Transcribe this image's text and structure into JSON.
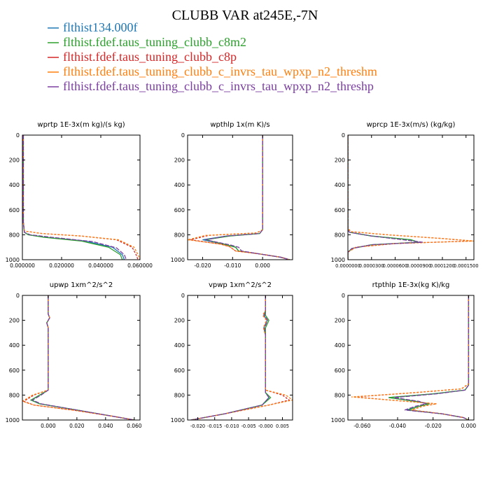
{
  "title": "CLUBB VAR at245E,-7N",
  "legend": [
    {
      "label": "flthist134.000f",
      "color": "#1f77b4"
    },
    {
      "label": "flthist.fdef.taus_tuning_clubb_c8m2",
      "color": "#2ca02c"
    },
    {
      "label": "flthist.fdef.taus_tuning_clubb_c8p",
      "color": "#d62728"
    },
    {
      "label": "flthist.fdef.taus_tuning_clubb_c_invrs_tau_wpxp_n2_threshm",
      "color": "#ff7f0e"
    },
    {
      "label": "flthist.fdef.taus_tuning_clubb_c_invrs_tau_wpxp_n2_threshp",
      "color": "#7b3fa0"
    }
  ],
  "chart_data": [
    {
      "type": "line",
      "title": "wprtp  1E-3x(m kg)/(s kg)",
      "xlim": [
        0.0,
        0.06
      ],
      "ylim": [
        1000,
        0
      ],
      "xticks": [
        0.0,
        0.02,
        0.04,
        0.06
      ],
      "xticklabels": [
        "0.000000",
        "0.020000",
        "0.040000",
        "0.060000"
      ],
      "yticks": [
        0,
        200,
        400,
        600,
        800,
        1000
      ],
      "yticklabels": [
        "0",
        "200",
        "400",
        "600",
        "800",
        "1000"
      ],
      "series": [
        {
          "color": "#1f77b4",
          "x": [
            0.0005,
            0.0005,
            0.001,
            0.003,
            0.012,
            0.032,
            0.046,
            0.051,
            0.052
          ],
          "y": [
            0,
            700,
            780,
            800,
            820,
            850,
            900,
            960,
            1000
          ]
        },
        {
          "color": "#2ca02c",
          "x": [
            0.0005,
            0.0005,
            0.001,
            0.003,
            0.011,
            0.03,
            0.044,
            0.05,
            0.051
          ],
          "y": [
            0,
            700,
            780,
            800,
            820,
            850,
            900,
            960,
            1000
          ]
        },
        {
          "color": "#d62728",
          "x": [
            0.0005,
            0.0005,
            0.001,
            0.01,
            0.03,
            0.048,
            0.056,
            0.058,
            0.059
          ],
          "y": [
            0,
            700,
            770,
            790,
            810,
            840,
            900,
            960,
            1000
          ]
        },
        {
          "color": "#ff7f0e",
          "x": [
            0.0005,
            0.0005,
            0.001,
            0.01,
            0.03,
            0.049,
            0.057,
            0.059,
            0.06
          ],
          "y": [
            0,
            700,
            770,
            790,
            810,
            840,
            900,
            960,
            1000
          ]
        },
        {
          "color": "#7b3fa0",
          "x": [
            0.0005,
            0.0005,
            0.001,
            0.004,
            0.015,
            0.036,
            0.048,
            0.052,
            0.053
          ],
          "y": [
            0,
            700,
            780,
            800,
            820,
            855,
            905,
            960,
            1000
          ]
        }
      ]
    },
    {
      "type": "line",
      "title": "wpthlp  1x(m K)/s",
      "xlim": [
        -0.025,
        0.01
      ],
      "ylim": [
        1000,
        0
      ],
      "xticks": [
        -0.02,
        -0.01,
        0.0
      ],
      "xticklabels": [
        "-0.020",
        "-0.010",
        "0.000"
      ],
      "yticks": [
        0,
        200,
        400,
        600,
        800,
        1000
      ],
      "yticklabels": [
        "0",
        "200",
        "400",
        "600",
        "800",
        "1000"
      ],
      "series": [
        {
          "color": "#1f77b4",
          "x": [
            0.0,
            0.0,
            -0.001,
            -0.012,
            -0.02,
            -0.012,
            -0.009,
            -0.008,
            -0.002,
            0.006,
            0.009
          ],
          "y": [
            0,
            760,
            790,
            810,
            840,
            880,
            900,
            930,
            950,
            980,
            1000
          ]
        },
        {
          "color": "#2ca02c",
          "x": [
            0.0,
            0.0,
            -0.001,
            -0.011,
            -0.019,
            -0.012,
            -0.009,
            -0.008,
            -0.002,
            0.006,
            0.009
          ],
          "y": [
            0,
            760,
            790,
            810,
            840,
            880,
            900,
            930,
            950,
            980,
            1000
          ]
        },
        {
          "color": "#d62728",
          "x": [
            0.0,
            0.0,
            -0.002,
            -0.018,
            -0.024,
            -0.014,
            -0.011,
            -0.009,
            -0.002,
            0.006,
            0.009
          ],
          "y": [
            0,
            760,
            785,
            805,
            840,
            875,
            895,
            930,
            950,
            980,
            1000
          ]
        },
        {
          "color": "#ff7f0e",
          "x": [
            0.0,
            0.0,
            -0.002,
            -0.019,
            -0.025,
            -0.014,
            -0.011,
            -0.009,
            -0.002,
            0.006,
            0.009
          ],
          "y": [
            0,
            760,
            785,
            805,
            840,
            875,
            895,
            930,
            950,
            980,
            1000
          ]
        },
        {
          "color": "#7b3fa0",
          "x": [
            0.0,
            0.0,
            -0.001,
            -0.012,
            -0.019,
            -0.011,
            -0.008,
            -0.007,
            -0.002,
            0.006,
            0.009
          ],
          "y": [
            0,
            760,
            790,
            810,
            840,
            880,
            900,
            930,
            950,
            980,
            1000
          ]
        }
      ]
    },
    {
      "type": "line",
      "title": "wprcp  1E-3x(m/s) (kg/kg)",
      "xlim": [
        0.0,
        0.00016
      ],
      "ylim": [
        1000,
        0
      ],
      "xticks": [
        0.0,
        3e-05,
        6e-05,
        9e-05,
        0.00012,
        0.00015
      ],
      "xticklabels": [
        "0.0000000",
        "0.0000300",
        "0.0000600",
        "0.0000900",
        "0.0001200",
        "0.0001500"
      ],
      "yticks": [
        0,
        200,
        400,
        600,
        800,
        1000
      ],
      "yticklabels": [
        "0",
        "200",
        "400",
        "600",
        "800",
        "1000"
      ],
      "series": [
        {
          "color": "#1f77b4",
          "x": [
            0.0,
            0.0,
            2e-06,
            3e-05,
            8e-05,
            9e-05,
            3e-05,
            5e-06,
            0.0,
            0.0
          ],
          "y": [
            0,
            760,
            780,
            810,
            840,
            860,
            880,
            910,
            940,
            1000
          ]
        },
        {
          "color": "#2ca02c",
          "x": [
            0.0,
            0.0,
            2e-06,
            3e-05,
            8e-05,
            9e-05,
            3e-05,
            5e-06,
            0.0,
            0.0
          ],
          "y": [
            0,
            760,
            780,
            810,
            840,
            860,
            880,
            910,
            940,
            1000
          ]
        },
        {
          "color": "#d62728",
          "x": [
            0.0,
            0.0,
            4e-06,
            5e-05,
            0.00012,
            0.000158,
            6e-05,
            1e-05,
            0.0,
            0.0
          ],
          "y": [
            0,
            750,
            775,
            800,
            830,
            850,
            870,
            900,
            940,
            1000
          ]
        },
        {
          "color": "#ff7f0e",
          "x": [
            0.0,
            0.0,
            4e-06,
            5e-05,
            0.00012,
            0.00016,
            6e-05,
            1e-05,
            0.0,
            0.0
          ],
          "y": [
            0,
            750,
            775,
            800,
            830,
            850,
            870,
            900,
            940,
            1000
          ]
        },
        {
          "color": "#7b3fa0",
          "x": [
            0.0,
            0.0,
            2e-06,
            3e-05,
            7e-05,
            9.5e-05,
            3e-05,
            5e-06,
            0.0,
            0.0
          ],
          "y": [
            0,
            760,
            780,
            810,
            840,
            860,
            880,
            910,
            940,
            1000
          ]
        }
      ]
    },
    {
      "type": "line",
      "title": "upwp  1xm^2/s^2",
      "xlim": [
        -0.018,
        0.064
      ],
      "ylim": [
        1000,
        0
      ],
      "xticks": [
        0.0,
        0.02,
        0.04,
        0.06
      ],
      "xticklabels": [
        "0.000",
        "0.020",
        "0.040",
        "0.060"
      ],
      "yticks": [
        0,
        200,
        400,
        600,
        800,
        1000
      ],
      "yticklabels": [
        "0",
        "200",
        "400",
        "600",
        "800",
        "1000"
      ],
      "series": [
        {
          "color": "#1f77b4",
          "x": [
            0.0,
            0.0,
            0.001,
            -0.001,
            0.0,
            0.0,
            -0.006,
            -0.012,
            -0.006,
            0.02,
            0.045,
            0.06
          ],
          "y": [
            0,
            150,
            180,
            220,
            260,
            760,
            800,
            840,
            870,
            920,
            970,
            1000
          ]
        },
        {
          "color": "#2ca02c",
          "x": [
            0.0,
            0.0,
            0.001,
            -0.001,
            0.0,
            0.0,
            -0.006,
            -0.012,
            -0.006,
            0.02,
            0.045,
            0.06
          ],
          "y": [
            0,
            150,
            180,
            220,
            260,
            760,
            800,
            840,
            870,
            920,
            970,
            1000
          ]
        },
        {
          "color": "#d62728",
          "x": [
            0.0,
            0.0,
            0.001,
            -0.001,
            0.0,
            0.0,
            -0.01,
            -0.017,
            -0.01,
            0.02,
            0.045,
            0.06
          ],
          "y": [
            0,
            150,
            180,
            220,
            260,
            760,
            800,
            850,
            880,
            925,
            970,
            1000
          ]
        },
        {
          "color": "#ff7f0e",
          "x": [
            0.0,
            0.0,
            0.001,
            -0.001,
            0.0,
            0.0,
            -0.011,
            -0.018,
            -0.01,
            0.02,
            0.045,
            0.06
          ],
          "y": [
            0,
            150,
            180,
            220,
            260,
            760,
            800,
            850,
            880,
            925,
            970,
            1000
          ]
        },
        {
          "color": "#7b3fa0",
          "x": [
            0.0,
            0.0,
            0.001,
            -0.001,
            0.0,
            0.0,
            -0.005,
            -0.011,
            -0.005,
            0.02,
            0.045,
            0.06
          ],
          "y": [
            0,
            150,
            180,
            220,
            260,
            760,
            800,
            840,
            870,
            920,
            970,
            1000
          ]
        }
      ]
    },
    {
      "type": "line",
      "title": "vpwp  1xm^2/s^2",
      "xlim": [
        -0.023,
        0.008
      ],
      "ylim": [
        1000,
        0
      ],
      "xticks": [
        -0.02,
        -0.015,
        -0.01,
        -0.005,
        0.0,
        0.005
      ],
      "xticklabels": [
        "-0.020",
        "-0.015",
        "-0.010",
        "-0.005",
        "-0.000",
        "0.005"
      ],
      "yticks": [
        0,
        200,
        400,
        600,
        800,
        1000
      ],
      "yticklabels": [
        "0",
        "200",
        "400",
        "600",
        "800",
        "1000"
      ],
      "series": [
        {
          "color": "#1f77b4",
          "x": [
            0.0,
            0.0,
            -0.0005,
            0.0005,
            -0.0005,
            0.0,
            0.0,
            0.001,
            -0.001,
            -0.012,
            -0.022
          ],
          "y": [
            0,
            120,
            160,
            200,
            260,
            320,
            780,
            820,
            880,
            950,
            1000
          ]
        },
        {
          "color": "#2ca02c",
          "x": [
            0.0,
            0.0,
            0.0,
            0.001,
            0.0,
            0.0,
            0.0,
            0.0015,
            -0.001,
            -0.012,
            -0.022
          ],
          "y": [
            0,
            120,
            160,
            200,
            260,
            320,
            780,
            820,
            880,
            950,
            1000
          ]
        },
        {
          "color": "#d62728",
          "x": [
            0.0,
            0.0,
            -0.0008,
            0.0003,
            -0.0006,
            0.0,
            0.0,
            0.005,
            0.007,
            0.001,
            -0.012,
            -0.022
          ],
          "y": [
            0,
            120,
            160,
            200,
            260,
            320,
            760,
            800,
            840,
            880,
            950,
            1000
          ]
        },
        {
          "color": "#ff7f0e",
          "x": [
            0.0,
            0.0,
            -0.0008,
            0.0003,
            -0.0006,
            0.0,
            0.0,
            0.006,
            0.008,
            0.001,
            -0.012,
            -0.022
          ],
          "y": [
            0,
            120,
            160,
            200,
            260,
            320,
            760,
            800,
            840,
            880,
            950,
            1000
          ]
        },
        {
          "color": "#7b3fa0",
          "x": [
            0.0,
            0.0,
            -0.0003,
            0.0006,
            -0.0003,
            0.0,
            0.0,
            0.001,
            -0.001,
            -0.012,
            -0.022
          ],
          "y": [
            0,
            120,
            160,
            200,
            260,
            320,
            780,
            820,
            880,
            950,
            1000
          ]
        }
      ]
    },
    {
      "type": "line",
      "title": "rtpthlp  1E-3x(kg K)/kg",
      "xlim": [
        -0.068,
        0.003
      ],
      "ylim": [
        1000,
        0
      ],
      "xticks": [
        -0.06,
        -0.04,
        -0.02,
        0.0
      ],
      "xticklabels": [
        "-0.060",
        "-0.040",
        "-0.020",
        "0.000"
      ],
      "yticks": [
        0,
        200,
        400,
        600,
        800,
        1000
      ],
      "yticklabels": [
        "0",
        "200",
        "400",
        "600",
        "800",
        "1000"
      ],
      "series": [
        {
          "color": "#1f77b4",
          "x": [
            0.0,
            0.0,
            -0.002,
            -0.02,
            -0.045,
            -0.03,
            -0.022,
            -0.028,
            -0.035,
            -0.015,
            -0.003,
            0.0
          ],
          "y": [
            0,
            720,
            760,
            790,
            820,
            850,
            870,
            890,
            920,
            950,
            980,
            1000
          ]
        },
        {
          "color": "#2ca02c",
          "x": [
            0.0,
            0.0,
            -0.002,
            -0.02,
            -0.045,
            -0.03,
            -0.022,
            -0.028,
            -0.034,
            -0.015,
            -0.003,
            0.0
          ],
          "y": [
            0,
            720,
            760,
            790,
            820,
            850,
            870,
            890,
            920,
            950,
            980,
            1000
          ]
        },
        {
          "color": "#d62728",
          "x": [
            0.0,
            0.0,
            -0.004,
            -0.03,
            -0.064,
            -0.04,
            -0.018,
            -0.026,
            -0.032,
            -0.015,
            -0.003,
            0.0
          ],
          "y": [
            0,
            710,
            750,
            780,
            815,
            845,
            870,
            890,
            920,
            950,
            980,
            1000
          ]
        },
        {
          "color": "#ff7f0e",
          "x": [
            0.0,
            0.0,
            -0.004,
            -0.03,
            -0.066,
            -0.04,
            -0.018,
            -0.026,
            -0.032,
            -0.015,
            -0.003,
            0.0
          ],
          "y": [
            0,
            710,
            750,
            780,
            815,
            845,
            870,
            890,
            920,
            950,
            980,
            1000
          ]
        },
        {
          "color": "#7b3fa0",
          "x": [
            0.0,
            0.0,
            -0.002,
            -0.018,
            -0.042,
            -0.028,
            -0.024,
            -0.03,
            -0.036,
            -0.015,
            -0.003,
            0.0
          ],
          "y": [
            0,
            720,
            760,
            790,
            820,
            850,
            870,
            890,
            920,
            950,
            980,
            1000
          ]
        }
      ]
    }
  ]
}
